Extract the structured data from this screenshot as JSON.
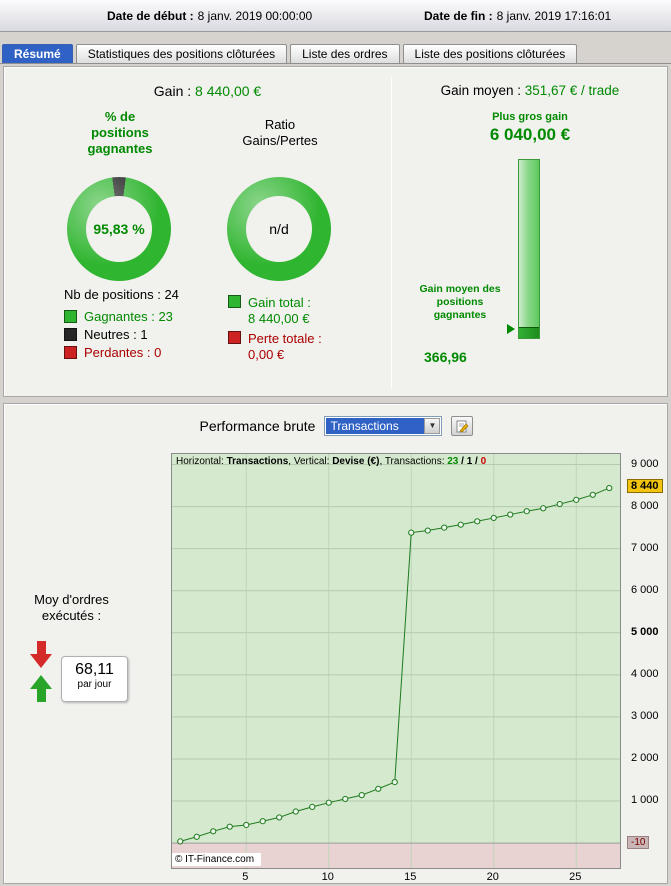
{
  "header": {
    "date_start_label": "Date de début :",
    "date_start_value": "8 janv. 2019 00:00:00",
    "date_end_label": "Date de fin :",
    "date_end_value": "8 janv. 2019 17:16:01"
  },
  "tabs": [
    {
      "label": "Résumé",
      "active": true
    },
    {
      "label": "Statistiques des positions clôturées",
      "active": false
    },
    {
      "label": "Liste des ordres",
      "active": false
    },
    {
      "label": "Liste des positions clôturées",
      "active": false
    }
  ],
  "summary": {
    "gain_label": "Gain :",
    "gain_value": "8 440,00 €",
    "pct_title": "% de positions gagnantes",
    "pct_value": "95,83 %",
    "winning_pct": 95.83,
    "ratio_title": "Ratio Gains/Pertes",
    "ratio_value": "n/d",
    "nb_positions": "Nb de positions : 24",
    "legend": [
      {
        "label": "Gagnantes : 23",
        "color": "#2fb52f",
        "text_color": "#008a00"
      },
      {
        "label": "Neutres : 1",
        "color": "#262626",
        "text_color": "#000000"
      },
      {
        "label": "Perdantes : 0",
        "color": "#cc2222",
        "text_color": "#aa0000"
      }
    ],
    "totals": [
      {
        "label": "Gain total :",
        "value": "8 440,00 €",
        "color": "#2fb52f",
        "text_color": "#008a00"
      },
      {
        "label": "Perte totale :",
        "value": "0,00 €",
        "color": "#cc2222",
        "text_color": "#aa0000"
      }
    ]
  },
  "average": {
    "label": "Gain moyen :",
    "value": "351,67 € / trade",
    "biggest_label": "Plus gros gain",
    "biggest_value": "6 040,00 €",
    "biggest_num": 6040,
    "avg_win_label": "Gain moyen des positions gagnantes",
    "avg_win_value": "366,96",
    "avg_win_num": 366.96
  },
  "performance": {
    "title": "Performance brute",
    "dropdown_value": "Transactions",
    "orders_label": "Moy d'ordres exécutés :",
    "orders_value": "68,11",
    "orders_unit": "par jour",
    "copyright": "© IT-Finance.com"
  },
  "icons": {
    "dropdown_arrow": "▼"
  },
  "colors": {
    "accent_blue": "#2f62c4",
    "gain_green": "#008a00",
    "loss_red": "#aa0000",
    "badge_yellow": "#f2c40f"
  },
  "chart_data": {
    "type": "line",
    "title": "Performance brute",
    "xlabel": "Transactions",
    "ylabel": "Devise (€)",
    "x": [
      1,
      2,
      3,
      4,
      5,
      6,
      7,
      8,
      9,
      10,
      11,
      12,
      13,
      14,
      15,
      16,
      17,
      18,
      19,
      20,
      21,
      22,
      23,
      24,
      25,
      26,
      27
    ],
    "values": [
      40,
      150,
      280,
      390,
      430,
      520,
      610,
      750,
      860,
      960,
      1050,
      1140,
      1290,
      1450,
      7380,
      7430,
      7500,
      7570,
      7650,
      7730,
      7810,
      7890,
      7960,
      8060,
      8160,
      8280,
      8440
    ],
    "ylim": [
      -640,
      9250
    ],
    "grid": true,
    "yticks": [
      {
        "v": 9000,
        "label": "9 000",
        "bold": false
      },
      {
        "v": 8000,
        "label": "8 000",
        "bold": false
      },
      {
        "v": 7000,
        "label": "7 000",
        "bold": false
      },
      {
        "v": 6000,
        "label": "6 000",
        "bold": false
      },
      {
        "v": 5000,
        "label": "5 000",
        "bold": true
      },
      {
        "v": 4000,
        "label": "4 000",
        "bold": false
      },
      {
        "v": 3000,
        "label": "3 000",
        "bold": false
      },
      {
        "v": 2000,
        "label": "2 000",
        "bold": false
      },
      {
        "v": 1000,
        "label": "1 000",
        "bold": false
      }
    ],
    "xticks": [
      {
        "v": 5,
        "label": "5"
      },
      {
        "v": 10,
        "label": "10"
      },
      {
        "v": 15,
        "label": "15"
      },
      {
        "v": 20,
        "label": "20"
      },
      {
        "v": 25,
        "label": "25"
      }
    ],
    "badges": {
      "current": {
        "v": 8440,
        "label": "8 440"
      },
      "min": {
        "v": -10,
        "label": "-10"
      }
    },
    "info_parts": [
      {
        "text": "Horizontal: "
      },
      {
        "text": "Transactions",
        "bold": true
      },
      {
        "text": ", Vertical: "
      },
      {
        "text": "Devise (€)",
        "bold": true
      },
      {
        "text": ", Transactions: "
      },
      {
        "text": "23",
        "bold": true,
        "color": "#008a00"
      },
      {
        "text": " / ",
        "bold": true
      },
      {
        "text": "1",
        "bold": true,
        "color": "#000000"
      },
      {
        "text": " / ",
        "bold": true
      },
      {
        "text": "0",
        "bold": true,
        "color": "#cc0000"
      }
    ],
    "colors": {
      "bg": "#d4e9cd",
      "negative_bg": "#e9d2d2",
      "line": "#1e7a1e",
      "marker_fill": "#edf6ec",
      "grid": "#b4cbae",
      "grid_v": "#bfd6b9",
      "zero_line": "#9a9a9a"
    },
    "legend_position": "top-left"
  }
}
